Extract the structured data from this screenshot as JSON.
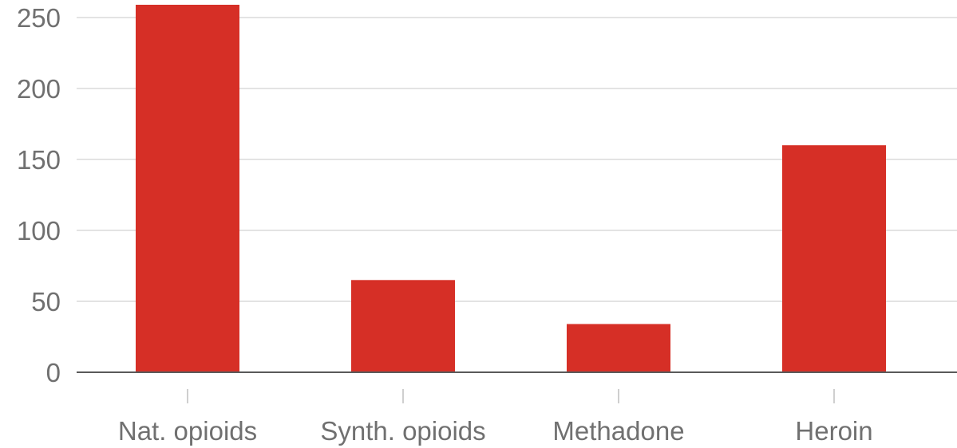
{
  "chart_data": {
    "type": "bar",
    "categories": [
      "Nat. opioids",
      "Synth. opioids",
      "Methadone",
      "Heroin"
    ],
    "values": [
      259,
      65,
      34,
      160
    ],
    "title": "",
    "xlabel": "",
    "ylabel": "",
    "ylim": [
      0,
      250
    ],
    "yticks": [
      "0",
      "50",
      "100",
      "150",
      "200",
      "250"
    ],
    "grid": true,
    "bar_color": "#d62f26"
  }
}
